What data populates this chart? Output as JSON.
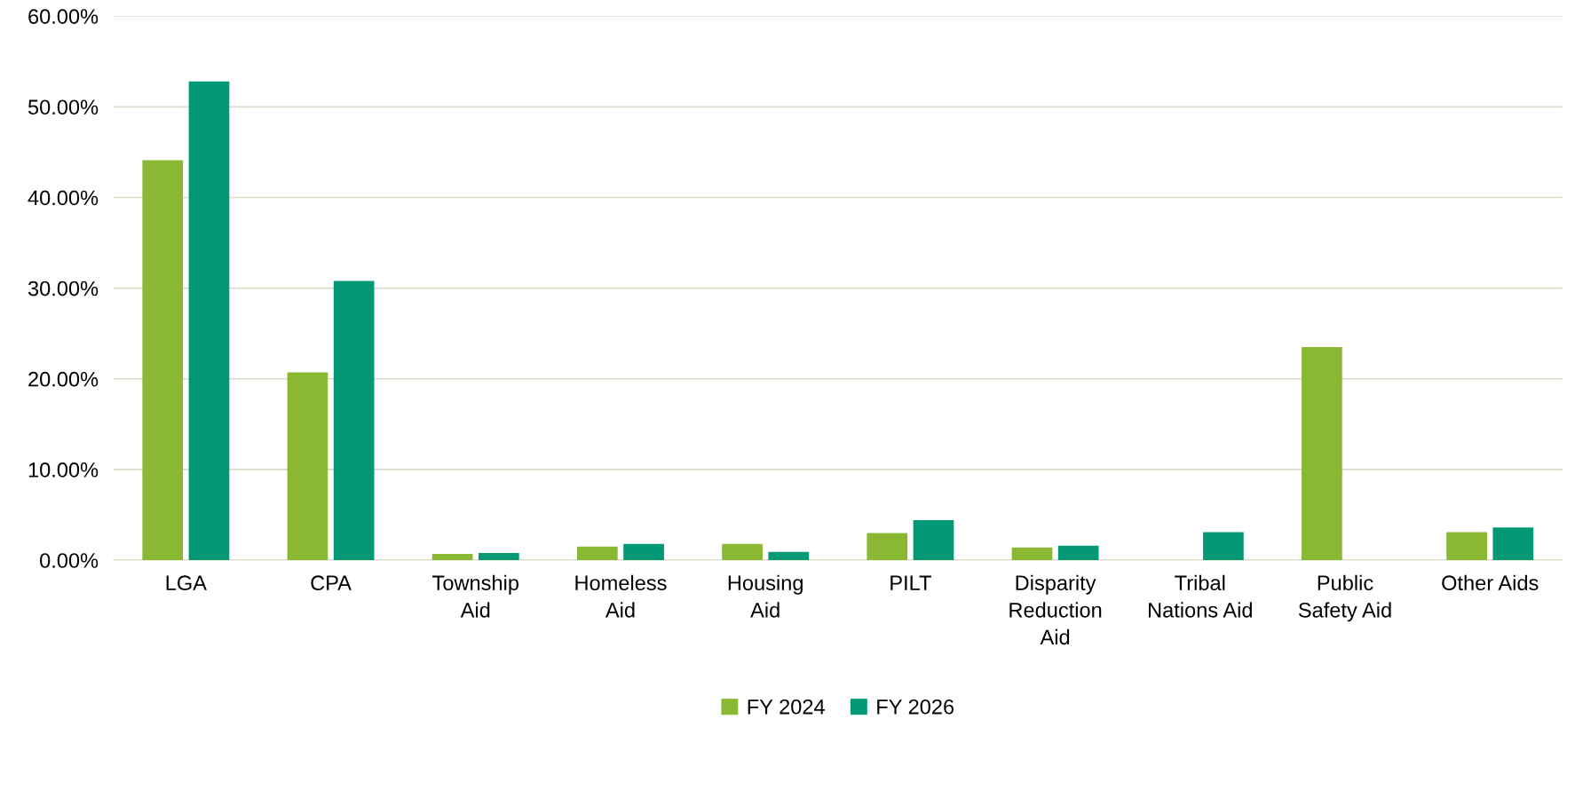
{
  "chart_data": {
    "type": "bar",
    "categories": [
      "LGA",
      "CPA",
      "Township\nAid",
      "Homeless\nAid",
      "Housing\nAid",
      "PILT",
      "Disparity\nReduction\nAid",
      "Tribal\nNations Aid",
      "Public\nSafety Aid",
      "Other Aids"
    ],
    "series": [
      {
        "name": "FY 2024",
        "color": "#8bb833",
        "values": [
          44.1,
          20.7,
          0.7,
          1.5,
          1.8,
          3.0,
          1.4,
          null,
          23.5,
          3.1
        ]
      },
      {
        "name": "FY 2026",
        "color": "#039976",
        "values": [
          52.8,
          30.8,
          0.8,
          1.8,
          0.9,
          4.4,
          1.6,
          3.1,
          null,
          3.6
        ]
      }
    ],
    "ylim": [
      0,
      60
    ],
    "yticks": [
      {
        "value": 0,
        "label": "0.00%"
      },
      {
        "value": 10,
        "label": "10.00%"
      },
      {
        "value": 20,
        "label": "20.00%"
      },
      {
        "value": 30,
        "label": "30.00%"
      },
      {
        "value": 40,
        "label": "40.00%"
      },
      {
        "value": 50,
        "label": "50.00%"
      },
      {
        "value": 60,
        "label": "60.00%"
      }
    ],
    "grid": "y",
    "legend": "bottom"
  }
}
